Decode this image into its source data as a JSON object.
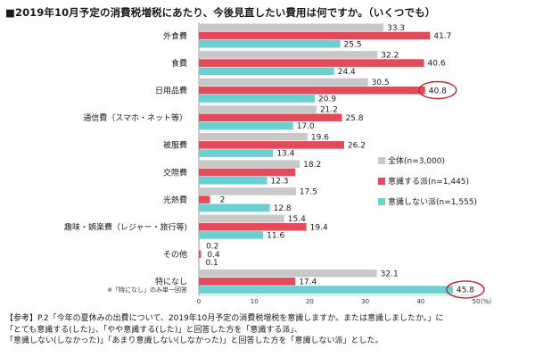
{
  "title": "■2019年10月予定の消費税増税にあたり、今後見直したい費用は何ですか。（いくつでも）",
  "note_lines": [
    "【参考】P.2「今年の夏休みの出費について、2019年10月予定の消費税増税を意識しますか。または意識しましたか。」に",
    "「とても意識する(した)」、「やや意識する(した)」と回答した方を「意識する派」、",
    "「意識しない(しなかった)」「あまり意識しない(しなかった)」と回答した方を「意識しない派」とした。"
  ],
  "category_footnote": "※「特になし」のみ単一回答",
  "chart_data": {
    "type": "bar",
    "orientation": "horizontal",
    "categories": [
      "外食費",
      "食費",
      "日用品費",
      "通信費（スマホ・ネット等）",
      "被服費",
      "交際費",
      "光熱費",
      "趣味・娯楽費（レジャー・旅行等)",
      "その他",
      "特になし"
    ],
    "series": [
      {
        "name": "全体(n=3,000)",
        "color": "#c8c8c8",
        "values": [
          33.3,
          32.2,
          30.5,
          21.2,
          19.6,
          18.2,
          17.5,
          15.4,
          0.2,
          32.1
        ]
      },
      {
        "name": "意識する派(n=1,445)",
        "color": "#e34a5c",
        "values": [
          41.7,
          40.6,
          40.8,
          25.8,
          26.2,
          17.4,
          2,
          19.4,
          0.4,
          17.4
        ]
      },
      {
        "name": "意識しない派(n=1,555)",
        "color": "#6ccfd0",
        "values": [
          25.5,
          24.4,
          20.9,
          17.0,
          13.4,
          12.3,
          12.8,
          11.6,
          0.1,
          45.8
        ]
      }
    ],
    "value_labels": [
      [
        "33.3",
        "41.7",
        "25.5"
      ],
      [
        "32.2",
        "40.6",
        "24.4"
      ],
      [
        "30.5",
        "40.8",
        "20.9"
      ],
      [
        "21.2",
        "25.8",
        "17.0"
      ],
      [
        "19.6",
        "26.2",
        "13.4"
      ],
      [
        "18.2",
        "",
        "12.3"
      ],
      [
        "17.5",
        "2",
        "12.8"
      ],
      [
        "15.4",
        "19.4",
        "11.6"
      ],
      [
        "0.2",
        "0.4",
        "0.1"
      ],
      [
        "32.1",
        "17.4",
        "45.8"
      ]
    ],
    "highlighted": [
      [
        2,
        1
      ],
      [
        9,
        2
      ]
    ],
    "xlim": [
      0,
      50
    ],
    "xticks": [
      "0",
      "10",
      "20",
      "30",
      "40",
      "50"
    ],
    "x_unit": "(%)",
    "legend_position": "right"
  }
}
